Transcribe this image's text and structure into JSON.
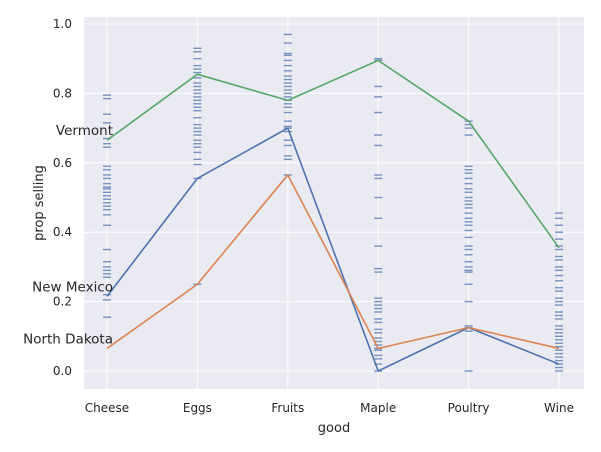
{
  "chart_data": {
    "type": "line",
    "xlabel": "good",
    "ylabel": "prop selling",
    "categories": [
      "Cheese",
      "Eggs",
      "Fruits",
      "Maple",
      "Poultry",
      "Wine"
    ],
    "ylim": [
      -0.05,
      1.0
    ],
    "yticks": [
      0.0,
      0.2,
      0.4,
      0.6,
      0.8,
      1.0
    ],
    "ytick_labels": [
      "0.0",
      "0.2",
      "0.4",
      "0.6",
      "0.8",
      "1.0"
    ],
    "grid": true,
    "series": [
      {
        "name": "Vermont",
        "color": "#55a868",
        "values": [
          0.665,
          0.855,
          0.78,
          0.895,
          0.72,
          0.355
        ]
      },
      {
        "name": "New Mexico",
        "color": "#4c72b0",
        "values": [
          0.215,
          0.555,
          0.7,
          0.0,
          0.125,
          0.02
        ]
      },
      {
        "name": "North Dakota",
        "color": "#dd8452",
        "values": [
          0.065,
          0.25,
          0.565,
          0.065,
          0.125,
          0.065
        ]
      }
    ],
    "strip": {
      "color": "#4c72b0",
      "values": [
        [
          0.795,
          0.785,
          0.74,
          0.715,
          0.67,
          0.655,
          0.645,
          0.59,
          0.58,
          0.565,
          0.555,
          0.54,
          0.53,
          0.525,
          0.515,
          0.505,
          0.495,
          0.485,
          0.475,
          0.465,
          0.45,
          0.42,
          0.35,
          0.315,
          0.3,
          0.29,
          0.28,
          0.27,
          0.22,
          0.205,
          0.155
        ],
        [
          0.93,
          0.92,
          0.9,
          0.88,
          0.87,
          0.86,
          0.845,
          0.83,
          0.82,
          0.81,
          0.8,
          0.79,
          0.78,
          0.77,
          0.76,
          0.75,
          0.73,
          0.71,
          0.7,
          0.69,
          0.68,
          0.665,
          0.655,
          0.645,
          0.63,
          0.61,
          0.595,
          0.555,
          0.25
        ],
        [
          0.97,
          0.945,
          0.915,
          0.91,
          0.895,
          0.88,
          0.865,
          0.85,
          0.84,
          0.83,
          0.82,
          0.81,
          0.8,
          0.79,
          0.78,
          0.77,
          0.76,
          0.745,
          0.72,
          0.705,
          0.7,
          0.69,
          0.665,
          0.65,
          0.62,
          0.61,
          0.565
        ],
        [
          0.9,
          0.895,
          0.82,
          0.79,
          0.745,
          0.68,
          0.65,
          0.565,
          0.555,
          0.5,
          0.44,
          0.36,
          0.295,
          0.285,
          0.21,
          0.2,
          0.19,
          0.18,
          0.17,
          0.15,
          0.14,
          0.12,
          0.11,
          0.095,
          0.085,
          0.075,
          0.065,
          0.06,
          0.045,
          0.035,
          0.02,
          0.0
        ],
        [
          0.72,
          0.71,
          0.7,
          0.68,
          0.59,
          0.58,
          0.57,
          0.555,
          0.54,
          0.525,
          0.515,
          0.5,
          0.49,
          0.48,
          0.47,
          0.455,
          0.44,
          0.43,
          0.42,
          0.405,
          0.385,
          0.36,
          0.35,
          0.335,
          0.315,
          0.3,
          0.29,
          0.285,
          0.25,
          0.2,
          0.13,
          0.125,
          0.115,
          0.0
        ],
        [
          0.455,
          0.44,
          0.42,
          0.4,
          0.38,
          0.36,
          0.35,
          0.33,
          0.32,
          0.3,
          0.29,
          0.275,
          0.26,
          0.24,
          0.23,
          0.21,
          0.2,
          0.19,
          0.17,
          0.16,
          0.15,
          0.13,
          0.12,
          0.11,
          0.1,
          0.09,
          0.08,
          0.07,
          0.06,
          0.05,
          0.04,
          0.03,
          0.02,
          0.01,
          0.0
        ]
      ]
    }
  }
}
